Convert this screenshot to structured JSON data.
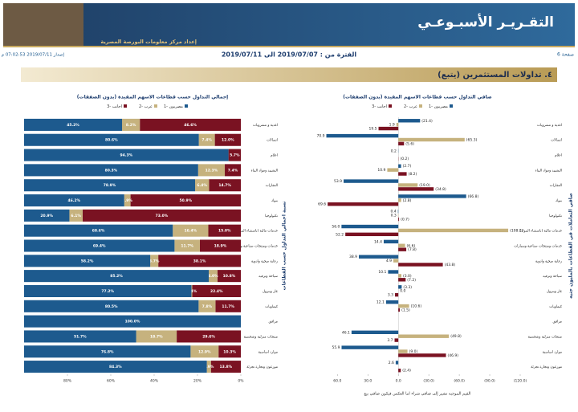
{
  "header": {
    "title": "التقـريـر الأسبـوعـي",
    "subtitle": "إعداد مركز معلومات البورصة المصرية",
    "page": "صفحة 6",
    "period": "الفترة من : 2019/07/07 الى 2019/07/11",
    "issued": "إصدار 2019/07/11 07:02:53 م"
  },
  "section_title": "٤. تداولات المستثمرين (يتبع)",
  "footnote": "القيم الموجبة تشير إلى صافي شراء اما العكس فيكون صافي بيع",
  "chart_data": [
    {
      "type": "bar",
      "orientation": "horizontal",
      "stacked": true,
      "title": "إجمالي التداول حسب قطاعات الاسهم المقيدة (بدون الصفقات)",
      "axis_title": "نسبة اجمالي التداول حسب القطاعات",
      "categories": [
        "اغذية و مشروبات",
        "اتصالات",
        "اعلام",
        "التشييد ومواد البناء",
        "العقارات",
        "بنوك",
        "تكنولوجيا",
        "خدمات مالية (باستثناء البنوك)",
        "خدمات ومنتجات صناعية وسيارات",
        "رعاية صحية وادوية",
        "سياحة وترفيه",
        "غاز وبترول",
        "كيماويات",
        "مرافق",
        "منتجات منزلية وشخصية",
        "موارد اساسية",
        "موزعون وتجارة تجزئة"
      ],
      "series": [
        {
          "name": "مصريون -1",
          "color": "#1d5a8e",
          "values": [
            45.2,
            80.6,
            94.3,
            80.3,
            78.9,
            46.2,
            20.9,
            68.6,
            69.4,
            58.2,
            85.2,
            77.2,
            80.5,
            100.0,
            51.7,
            76.8,
            84.3
          ],
          "value_labels": [
            "45.2%",
            "80.6%",
            "94.3%",
            "80.3%",
            "78.9%",
            "46.2%",
            "20.9%",
            "68.6%",
            "69.4%",
            "58.2%",
            "85.2%",
            "77.2%",
            "80.5%",
            "100.0%",
            "51.7%",
            "76.8%",
            "84.3%"
          ]
        },
        {
          "name": "عرب -2",
          "color": "#c6b27e",
          "values": [
            8.2,
            7.4,
            0,
            12.3,
            6.4,
            2.9,
            6.1,
            16.4,
            11.7,
            3.7,
            4.0,
            0.4,
            7.8,
            0,
            18.7,
            12.9,
            1.9
          ],
          "value_labels": [
            "8.2%",
            "7.4%",
            null,
            "12.3%",
            "6.4%",
            "2.9%",
            "6.1%",
            "16.4%",
            "11.7%",
            "3.7%",
            "4.0%",
            "0.4%",
            "7.8%",
            null,
            "18.7%",
            "12.9%",
            "1.9%"
          ]
        },
        {
          "name": "اجانب -3",
          "color": "#7a1222",
          "values": [
            46.6,
            12.0,
            5.7,
            7.4,
            14.7,
            50.9,
            73.0,
            15.0,
            18.9,
            38.1,
            10.8,
            22.4,
            11.7,
            0,
            29.6,
            10.3,
            13.8
          ],
          "value_labels": [
            "46.6%",
            "12.0%",
            "5.7%",
            "7.4%",
            "14.7%",
            "50.9%",
            "73.0%",
            "15.0%",
            "18.9%",
            "38.1%",
            "10.8%",
            "22.4%",
            "11.7%",
            null,
            "29.6%",
            "10.3%",
            "13.8%"
          ]
        }
      ],
      "xlim": [
        100,
        0
      ],
      "xticks": [
        {
          "value": 80,
          "label": "80%"
        },
        {
          "value": 60,
          "label": "60%"
        },
        {
          "value": 40,
          "label": "40%"
        },
        {
          "value": 20,
          "label": "20%"
        },
        {
          "value": 0,
          "label": "0%"
        }
      ]
    },
    {
      "type": "bar",
      "orientation": "horizontal",
      "stacked": false,
      "title": "صافي التداول حسب قطاعات الاسهم المقيدة (بدون الصفقات)",
      "axis_title": "صافي التعاملات في القطاعات بالمليون جنيه",
      "categories": [
        "اغذية و مشروبات",
        "اتصالات",
        "اعلام",
        "التشييد ومواد البناء",
        "العقارات",
        "بنوك",
        "تكنولوجيا",
        "خدمات مالية (باستثناء البنوك)",
        "خدمات ومنتجات صناعية وسيارات",
        "رعاية صحية وادوية",
        "سياحة وترفيه",
        "غاز وبترول",
        "كيماويات",
        "مرافق",
        "منتجات منزلية وشخصية",
        "موارد اساسية",
        "موزعون وتجارة تجزئة"
      ],
      "series": [
        {
          "name": "مصريون -1",
          "color": "#1d5a8e",
          "values": [
            -21.4,
            70.9,
            0.2,
            -2.7,
            53.9,
            -66.8,
            0.4,
            56.0,
            14.4,
            38.9,
            10.1,
            -3.3,
            12.1,
            0,
            46.1,
            55.9,
            2.6
          ],
          "value_labels": [
            "(21.4)",
            "70.9",
            "0.2",
            "(2.7)",
            "53.9",
            "(66.8)",
            "0.4",
            "56.0",
            "14.4",
            "38.9",
            "10.1",
            "(3.3)",
            "12.1",
            null,
            "46.1",
            "55.9",
            "2.6"
          ]
        },
        {
          "name": "عرب -2",
          "color": "#c6b27e",
          "values": [
            1.9,
            -65.3,
            0,
            10.9,
            -19.0,
            -2.8,
            0.3,
            -108.2,
            -6.6,
            4.9,
            -3.0,
            0.0,
            -10.6,
            0,
            -49.8,
            -9.0,
            0
          ],
          "value_labels": [
            "1.9",
            "(65.3)",
            null,
            "10.9",
            "(19.0)",
            "(2.8)",
            "0.3",
            "(108.2)",
            "(6.6)",
            "4.9",
            "(3.0)",
            "0.0",
            "(10.6)",
            null,
            "(49.8)",
            "(9.0)",
            null
          ]
        },
        {
          "name": "اجانب -3",
          "color": "#7a1222",
          "values": [
            19.5,
            -5.6,
            -0.2,
            -8.2,
            -34.8,
            69.6,
            -0.7,
            52.2,
            -7.8,
            -43.8,
            -7.2,
            3.3,
            -1.5,
            0,
            3.7,
            -46.9,
            -2.4
          ],
          "value_labels": [
            "19.5",
            "(5.6)",
            "(0.2)",
            "(8.2)",
            "(34.8)",
            "69.6",
            "(0.7)",
            "52.2",
            "(7.8)",
            "(43.8)",
            "(7.2)",
            "3.3",
            "(1.5)",
            null,
            "3.7",
            "(46.9)",
            "(2.4)"
          ]
        }
      ],
      "xlim": [
        80,
        -120
      ],
      "xticks": [
        {
          "value": 60,
          "label": "60.0"
        },
        {
          "value": 30,
          "label": "30.0"
        },
        {
          "value": 0,
          "label": "0.0"
        },
        {
          "value": -30,
          "label": "(30.0)"
        },
        {
          "value": -60,
          "label": "(60.0)"
        },
        {
          "value": -90,
          "label": "(90.0)"
        },
        {
          "value": -120,
          "label": "(120.0)"
        }
      ]
    }
  ]
}
